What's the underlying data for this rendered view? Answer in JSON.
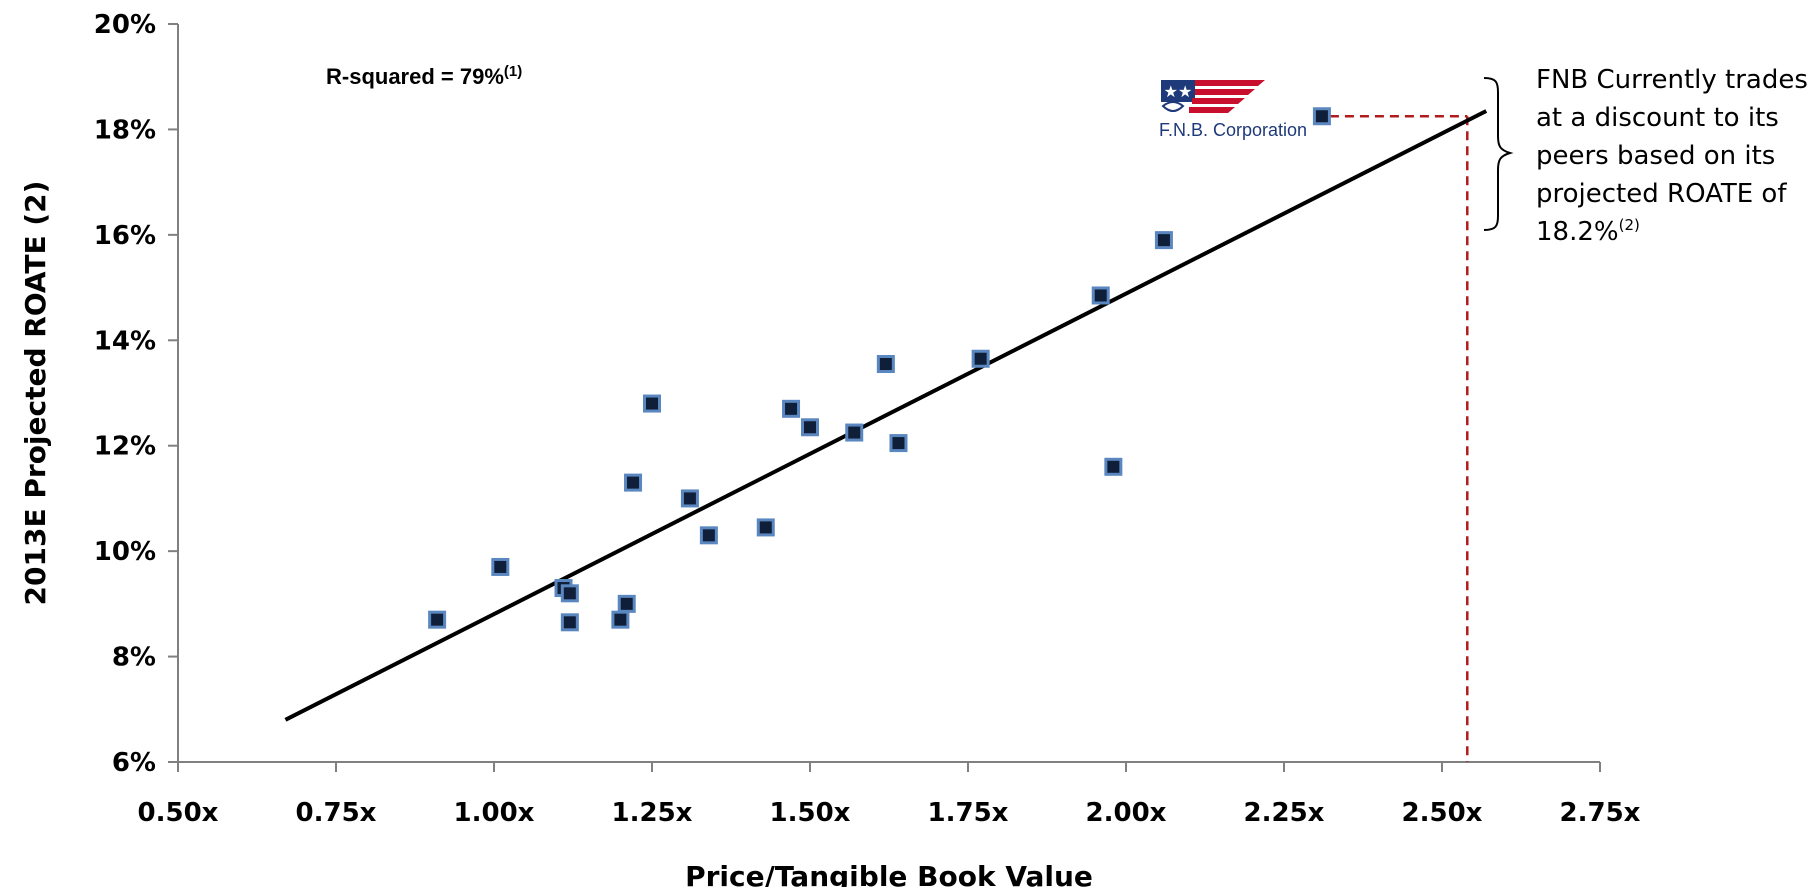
{
  "chart_data": {
    "type": "scatter",
    "xlabel": "Price/Tangible Book Value",
    "ylabel": "2013E Projected ROATE (2)",
    "xlim": [
      0.5,
      2.75
    ],
    "ylim": [
      6,
      20
    ],
    "x_ticks": [
      "0.50x",
      "0.75x",
      "1.00x",
      "1.25x",
      "1.50x",
      "1.75x",
      "2.00x",
      "2.25x",
      "2.50x",
      "2.75x"
    ],
    "x_tick_values": [
      0.5,
      0.75,
      1.0,
      1.25,
      1.5,
      1.75,
      2.0,
      2.25,
      2.5,
      2.75
    ],
    "y_ticks": [
      "6%",
      "8%",
      "10%",
      "12%",
      "14%",
      "16%",
      "18%",
      "20%"
    ],
    "y_tick_values": [
      6,
      8,
      10,
      12,
      14,
      16,
      18,
      20
    ],
    "grid": false,
    "points": [
      {
        "x": 0.91,
        "y": 8.7
      },
      {
        "x": 1.01,
        "y": 9.7
      },
      {
        "x": 1.11,
        "y": 9.3
      },
      {
        "x": 1.12,
        "y": 9.2
      },
      {
        "x": 1.12,
        "y": 8.65
      },
      {
        "x": 1.2,
        "y": 8.7
      },
      {
        "x": 1.21,
        "y": 9.0
      },
      {
        "x": 1.22,
        "y": 11.3
      },
      {
        "x": 1.25,
        "y": 12.8
      },
      {
        "x": 1.31,
        "y": 11.0
      },
      {
        "x": 1.34,
        "y": 10.3
      },
      {
        "x": 1.43,
        "y": 10.45
      },
      {
        "x": 1.47,
        "y": 12.7
      },
      {
        "x": 1.5,
        "y": 12.35
      },
      {
        "x": 1.57,
        "y": 12.25
      },
      {
        "x": 1.62,
        "y": 13.55
      },
      {
        "x": 1.64,
        "y": 12.05
      },
      {
        "x": 1.77,
        "y": 13.65
      },
      {
        "x": 1.96,
        "y": 14.85
      },
      {
        "x": 1.98,
        "y": 11.6
      },
      {
        "x": 2.06,
        "y": 15.9
      },
      {
        "x": 2.31,
        "y": 18.25
      }
    ],
    "trendline": {
      "x": [
        0.67,
        2.57
      ],
      "y": [
        6.8,
        18.35
      ]
    },
    "reference_line": {
      "x": 2.54,
      "y": 18.25
    },
    "rsquared_text": "R-squared = 79%",
    "rsquared_sup": "(1)",
    "annotation_lines": [
      "FNB Currently trades",
      "at a discount to its",
      "peers based on its",
      "projected ROATE of",
      "18.2%"
    ],
    "annotation_sup": "(2)",
    "logo_text": "F.N.B. Corporation",
    "colors": {
      "marker_fill": "#0f1f3a",
      "marker_stroke": "#5b87c0",
      "trendline": "#000000",
      "reference_line": "#b01c1c",
      "logo_red": "#c8102e",
      "logo_blue": "#1f3a7a"
    }
  }
}
